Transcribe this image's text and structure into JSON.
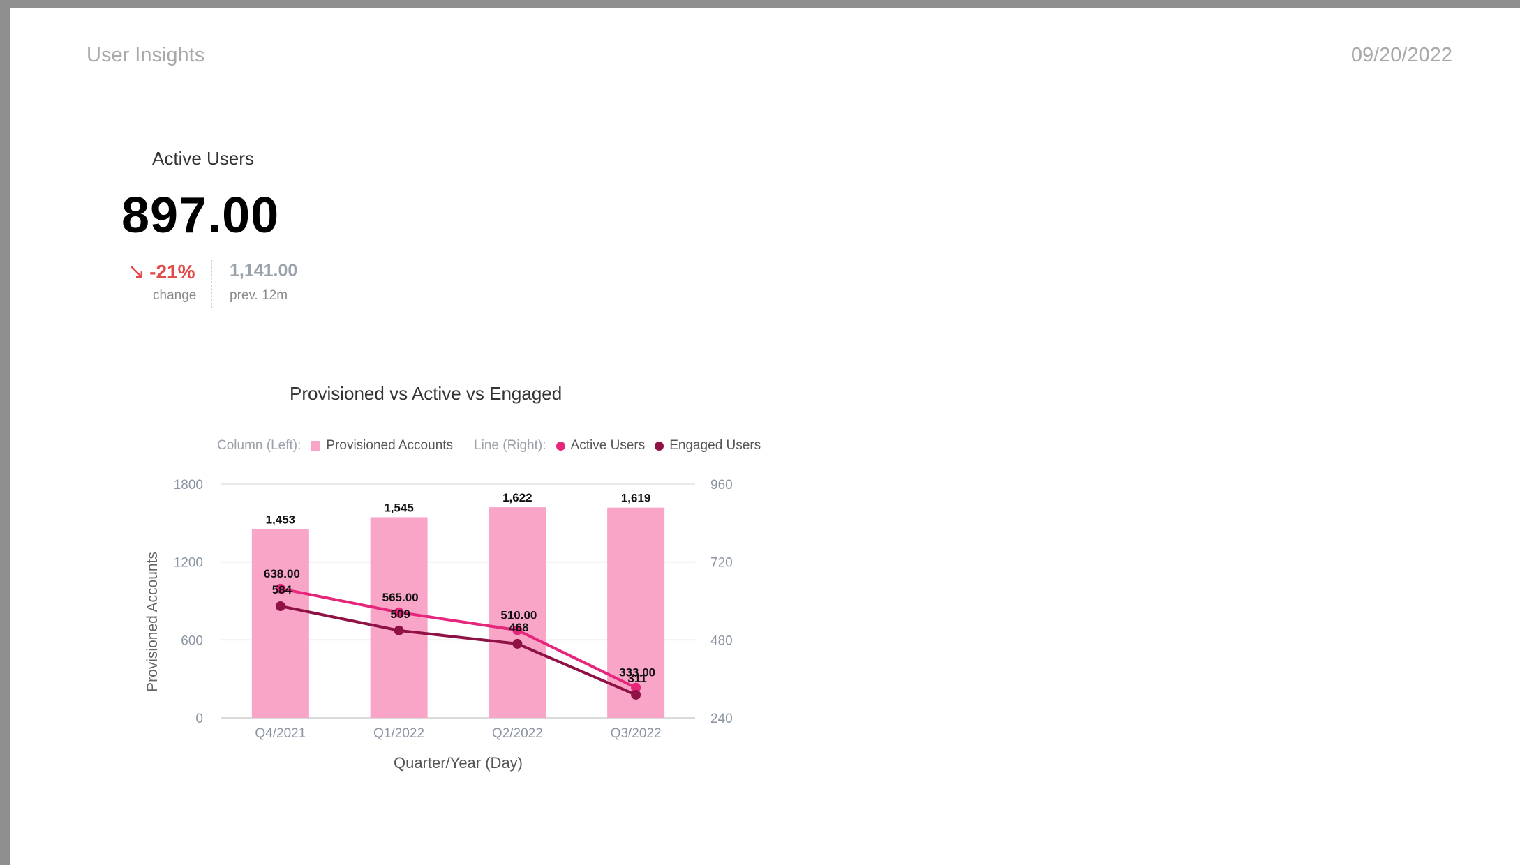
{
  "header": {
    "title": "User Insights",
    "date": "09/20/2022"
  },
  "kpi": {
    "title": "Active Users",
    "value": "897.00",
    "change": "-21%",
    "change_caption": "change",
    "previous": "1,141.00",
    "previous_caption": "prev. 12m"
  },
  "legend": {
    "left_caption": "Column (Left):",
    "right_caption": "Line (Right):"
  },
  "colors": {
    "provisioned": "#f9a5c8",
    "active": "#e5267b",
    "engaged": "#8e1246",
    "negative": "#e34a4a",
    "grid": "#e3e3e3",
    "axis_text": "#8b95a1"
  },
  "chart_data": {
    "type": "bar",
    "title": "Provisioned vs Active vs Engaged",
    "xlabel": "Quarter/Year (Day)",
    "ylabel": "Provisioned Accounts",
    "categories": [
      "Q4/2021",
      "Q1/2022",
      "Q2/2022",
      "Q3/2022"
    ],
    "ylim": [
      0,
      1800
    ],
    "yticks": [
      "0",
      "600",
      "1200",
      "1800"
    ],
    "y2lim": [
      240,
      960
    ],
    "y2ticks": [
      "240",
      "480",
      "720",
      "960"
    ],
    "grid": true,
    "legend_position": "top",
    "series": [
      {
        "name": "Provisioned Accounts",
        "type": "bar",
        "axis": "left",
        "values": [
          1453,
          1545,
          1622,
          1619
        ],
        "labels": [
          "1,453",
          "1,545",
          "1,622",
          "1,619"
        ]
      },
      {
        "name": "Active Users",
        "type": "line",
        "axis": "right",
        "values": [
          638,
          565,
          510,
          333
        ],
        "labels": [
          "638.00",
          "565.00",
          "510.00",
          "333.00"
        ]
      },
      {
        "name": "Engaged Users",
        "type": "line",
        "axis": "right",
        "values": [
          584,
          509,
          468,
          311
        ],
        "labels": [
          "584",
          "509",
          "468",
          "311"
        ]
      }
    ]
  }
}
